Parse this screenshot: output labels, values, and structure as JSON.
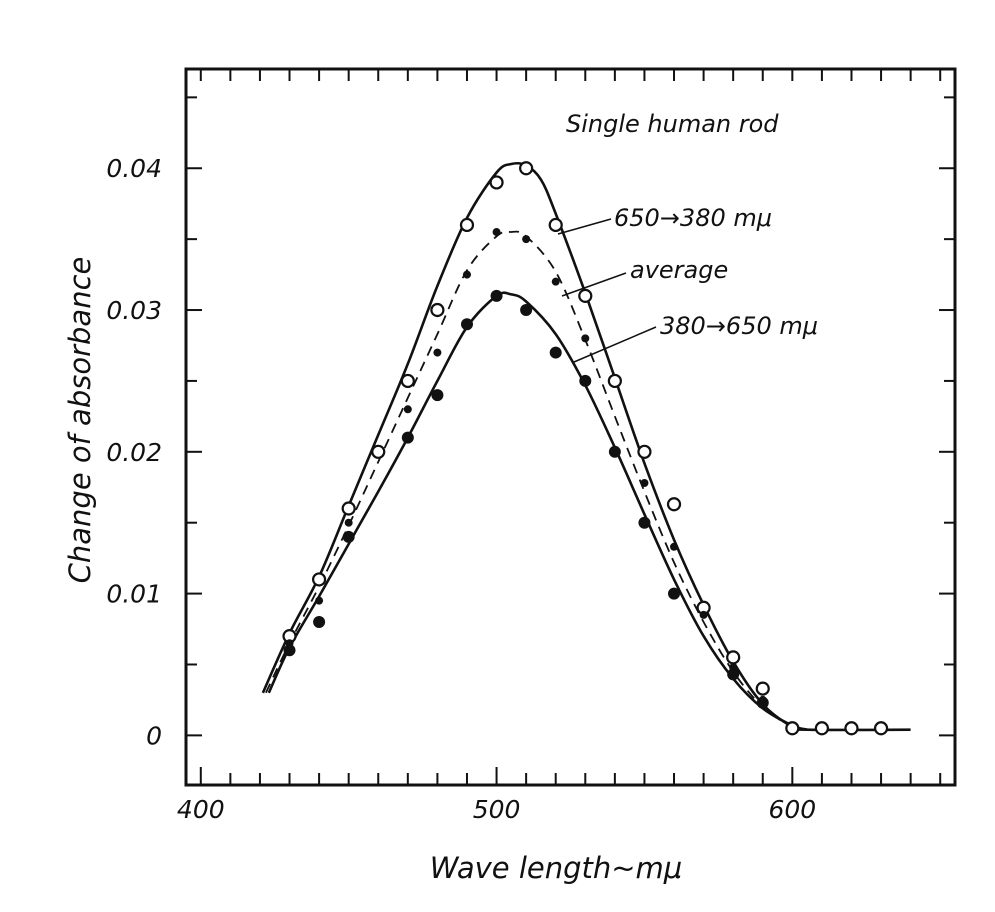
{
  "chart_data": {
    "type": "line",
    "title": "Single human rod",
    "xlabel": "Wave length~mμ",
    "ylabel": "Change of absorbance",
    "xlim": [
      395,
      655
    ],
    "ylim": [
      -0.0035,
      0.047
    ],
    "x_ticks": [
      400,
      500,
      600
    ],
    "x_tick_labels": [
      "400",
      "500",
      "600"
    ],
    "y_ticks": [
      0,
      0.01,
      0.02,
      0.03,
      0.04
    ],
    "y_tick_labels": [
      "0",
      "0.01",
      "0.02",
      "0.03",
      "0.04"
    ],
    "grid": false,
    "series": [
      {
        "name": "650→380 mμ",
        "marker": "open-circle",
        "line": "solid",
        "color": "#111111",
        "points": [
          [
            430,
            0.007
          ],
          [
            440,
            0.011
          ],
          [
            450,
            0.016
          ],
          [
            460,
            0.02
          ],
          [
            470,
            0.025
          ],
          [
            480,
            0.03
          ],
          [
            490,
            0.036
          ],
          [
            500,
            0.039
          ],
          [
            510,
            0.04
          ],
          [
            520,
            0.036
          ],
          [
            530,
            0.031
          ],
          [
            540,
            0.025
          ],
          [
            550,
            0.02
          ],
          [
            560,
            0.0163
          ],
          [
            570,
            0.009
          ],
          [
            580,
            0.0055
          ],
          [
            590,
            0.0033
          ],
          [
            600,
            0.0005
          ],
          [
            610,
            0.0005
          ],
          [
            620,
            0.0005
          ],
          [
            630,
            0.0005
          ]
        ],
        "curve": [
          [
            421,
            0.003
          ],
          [
            430,
            0.0072
          ],
          [
            440,
            0.0112
          ],
          [
            450,
            0.0162
          ],
          [
            460,
            0.0212
          ],
          [
            470,
            0.0262
          ],
          [
            480,
            0.0317
          ],
          [
            490,
            0.0365
          ],
          [
            500,
            0.0397
          ],
          [
            505,
            0.0403
          ],
          [
            510,
            0.0402
          ],
          [
            515,
            0.0392
          ],
          [
            520,
            0.0368
          ],
          [
            530,
            0.0312
          ],
          [
            540,
            0.0252
          ],
          [
            550,
            0.0192
          ],
          [
            560,
            0.0138
          ],
          [
            570,
            0.0092
          ],
          [
            580,
            0.0052
          ],
          [
            590,
            0.0022
          ],
          [
            600,
            0.0006
          ],
          [
            605,
            0.0004
          ],
          [
            640,
            0.0004
          ]
        ]
      },
      {
        "name": "average",
        "marker": "small-dot",
        "line": "dashed",
        "color": "#111111",
        "points": [
          [
            430,
            0.0065
          ],
          [
            440,
            0.0095
          ],
          [
            450,
            0.015
          ],
          [
            470,
            0.023
          ],
          [
            480,
            0.027
          ],
          [
            490,
            0.0325
          ],
          [
            500,
            0.0355
          ],
          [
            510,
            0.035
          ],
          [
            520,
            0.032
          ],
          [
            530,
            0.028
          ],
          [
            550,
            0.0178
          ],
          [
            560,
            0.0133
          ],
          [
            570,
            0.0085
          ],
          [
            580,
            0.0048
          ],
          [
            590,
            0.0025
          ]
        ],
        "curve": [
          [
            422,
            0.003
          ],
          [
            430,
            0.0065
          ],
          [
            440,
            0.0105
          ],
          [
            450,
            0.0148
          ],
          [
            460,
            0.0193
          ],
          [
            470,
            0.0238
          ],
          [
            480,
            0.0283
          ],
          [
            490,
            0.0328
          ],
          [
            500,
            0.0352
          ],
          [
            505,
            0.0355
          ],
          [
            510,
            0.0352
          ],
          [
            520,
            0.0327
          ],
          [
            530,
            0.0279
          ],
          [
            540,
            0.0225
          ],
          [
            550,
            0.0172
          ],
          [
            560,
            0.0122
          ],
          [
            570,
            0.008
          ],
          [
            580,
            0.0045
          ],
          [
            590,
            0.002
          ],
          [
            600,
            0.0006
          ],
          [
            605,
            0.0004
          ]
        ]
      },
      {
        "name": "380→650 mμ",
        "marker": "filled-circle",
        "line": "solid",
        "color": "#111111",
        "points": [
          [
            430,
            0.006
          ],
          [
            440,
            0.008
          ],
          [
            450,
            0.014
          ],
          [
            470,
            0.021
          ],
          [
            480,
            0.024
          ],
          [
            490,
            0.029
          ],
          [
            500,
            0.031
          ],
          [
            510,
            0.03
          ],
          [
            520,
            0.027
          ],
          [
            530,
            0.025
          ],
          [
            540,
            0.02
          ],
          [
            550,
            0.015
          ],
          [
            560,
            0.01
          ],
          [
            580,
            0.0043
          ],
          [
            590,
            0.0023
          ]
        ],
        "curve": [
          [
            423,
            0.003
          ],
          [
            430,
            0.0062
          ],
          [
            440,
            0.0098
          ],
          [
            450,
            0.0135
          ],
          [
            460,
            0.0172
          ],
          [
            470,
            0.021
          ],
          [
            480,
            0.025
          ],
          [
            490,
            0.0288
          ],
          [
            500,
            0.031
          ],
          [
            505,
            0.0311
          ],
          [
            510,
            0.0306
          ],
          [
            520,
            0.0283
          ],
          [
            530,
            0.0247
          ],
          [
            540,
            0.0203
          ],
          [
            550,
            0.0156
          ],
          [
            560,
            0.011
          ],
          [
            570,
            0.007
          ],
          [
            580,
            0.004
          ],
          [
            590,
            0.0019
          ],
          [
            600,
            0.0007
          ],
          [
            605,
            0.0004
          ]
        ]
      }
    ]
  }
}
